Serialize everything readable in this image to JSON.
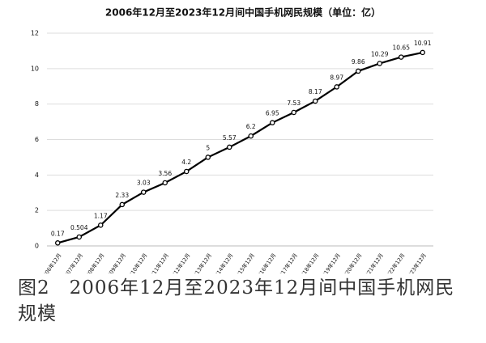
{
  "chart_data": {
    "type": "line",
    "title": "2006年12月至2023年12月间中国手机网民规模（单位：亿）",
    "categories": [
      "2006年12月",
      "2007年12月",
      "2008年12月",
      "2009年12月",
      "2010年12月",
      "2011年12月",
      "2012年12月",
      "2013年12月",
      "2014年12月",
      "2015年12月",
      "2016年12月",
      "2017年12月",
      "2018年12月",
      "2019年12月",
      "2020年12月",
      "2021年12月",
      "2022年12月",
      "2023年12月"
    ],
    "values": [
      0.17,
      0.504,
      1.17,
      2.33,
      3.03,
      3.56,
      4.2,
      5,
      5.57,
      6.2,
      6.95,
      7.53,
      8.17,
      8.97,
      9.86,
      10.29,
      10.65,
      10.91
    ],
    "color": "#000000",
    "ylim": [
      0,
      12
    ],
    "yticks": [
      0,
      2,
      4,
      6,
      8,
      10,
      12
    ],
    "grid": true
  },
  "caption": "图2　2006年12月至2023年12月间中国手机网民规模"
}
